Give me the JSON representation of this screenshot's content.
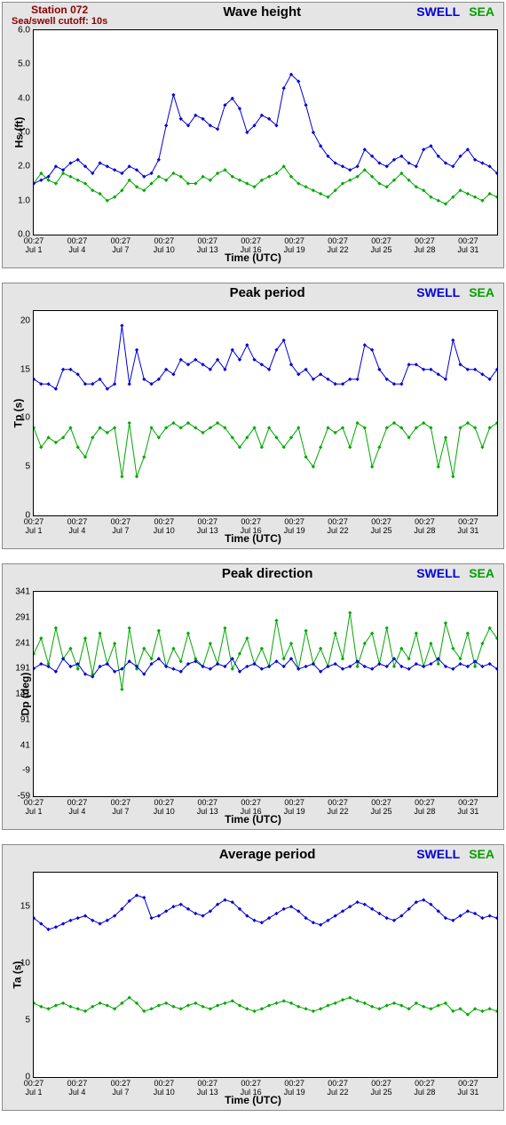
{
  "station": {
    "name": "Station 072",
    "cutoff": "Sea/swell cutoff: 10s"
  },
  "legend": {
    "swell": "SWELL",
    "sea": "SEA"
  },
  "colors": {
    "swell": "#0000d8",
    "sea": "#00a800",
    "station_text": "#8b0000",
    "panel_bg": "#e5e5e5",
    "plot_bg": "#ffffff",
    "border": "#8a8a8a",
    "ink": "#000000"
  },
  "time": {
    "label": "Time (UTC)",
    "ticks": [
      {
        "t": "00:27",
        "d": "Jul 1",
        "x": 0
      },
      {
        "t": "00:27",
        "d": "Jul 4",
        "x": 3
      },
      {
        "t": "00:27",
        "d": "Jul 7",
        "x": 6
      },
      {
        "t": "00:27",
        "d": "Jul 10",
        "x": 9
      },
      {
        "t": "00:27",
        "d": "Jul 13",
        "x": 12
      },
      {
        "t": "00:27",
        "d": "Jul 16",
        "x": 15
      },
      {
        "t": "00:27",
        "d": "Jul 19",
        "x": 18
      },
      {
        "t": "00:27",
        "d": "Jul 22",
        "x": 21
      },
      {
        "t": "00:27",
        "d": "Jul 25",
        "x": 24
      },
      {
        "t": "00:27",
        "d": "Jul 28",
        "x": 27
      },
      {
        "t": "00:27",
        "d": "Jul 31",
        "x": 30
      }
    ],
    "xmin": 0,
    "xmax": 32
  },
  "panels": [
    {
      "id": "wave-height",
      "title": "Wave height",
      "ylabel": "Hs (ft)",
      "ymin": 0,
      "ymax": 6,
      "yticks": [
        0,
        "0.0",
        1,
        "1.0",
        2,
        "2.0",
        3,
        "3.0",
        4,
        "4.0",
        5,
        "5.0",
        6,
        "6.0"
      ],
      "swell": [
        1.5,
        1.6,
        1.7,
        2.0,
        1.9,
        2.1,
        2.2,
        2.0,
        1.8,
        2.1,
        2.0,
        1.9,
        1.8,
        2.0,
        1.9,
        1.7,
        1.8,
        2.2,
        3.2,
        4.1,
        3.4,
        3.2,
        3.5,
        3.4,
        3.2,
        3.1,
        3.8,
        4.0,
        3.7,
        3.0,
        3.2,
        3.5,
        3.4,
        3.2,
        4.3,
        4.7,
        4.5,
        3.8,
        3.0,
        2.6,
        2.3,
        2.1,
        2.0,
        1.9,
        2.0,
        2.5,
        2.3,
        2.1,
        2.0,
        2.2,
        2.3,
        2.1,
        2.0,
        2.5,
        2.6,
        2.3,
        2.1,
        2.0,
        2.3,
        2.5,
        2.2,
        2.1,
        2.0,
        1.8
      ],
      "sea": [
        1.5,
        1.8,
        1.6,
        1.5,
        1.8,
        1.7,
        1.6,
        1.5,
        1.3,
        1.2,
        1.0,
        1.1,
        1.3,
        1.6,
        1.4,
        1.3,
        1.5,
        1.7,
        1.6,
        1.8,
        1.7,
        1.5,
        1.5,
        1.7,
        1.6,
        1.8,
        1.9,
        1.7,
        1.6,
        1.5,
        1.4,
        1.6,
        1.7,
        1.8,
        2.0,
        1.7,
        1.5,
        1.4,
        1.3,
        1.2,
        1.1,
        1.3,
        1.5,
        1.6,
        1.7,
        1.9,
        1.7,
        1.5,
        1.4,
        1.6,
        1.8,
        1.6,
        1.4,
        1.3,
        1.1,
        1.0,
        0.9,
        1.1,
        1.3,
        1.2,
        1.1,
        1.0,
        1.2,
        1.1
      ]
    },
    {
      "id": "peak-period",
      "title": "Peak period",
      "ylabel": "Tp (s)",
      "ymin": 0,
      "ymax": 21,
      "yticks": [
        0,
        "0",
        5,
        "5",
        10,
        "10",
        15,
        "15",
        20,
        "20"
      ],
      "swell": [
        14,
        13.5,
        13.5,
        13,
        15,
        15,
        14.5,
        13.5,
        13.5,
        14,
        13,
        13.5,
        19.5,
        13.5,
        17,
        14,
        13.5,
        14,
        15,
        14.5,
        16,
        15.5,
        16,
        15.5,
        15,
        16,
        15,
        17,
        16,
        17.5,
        16,
        15.5,
        15,
        17,
        18,
        15.5,
        14.5,
        15,
        14,
        14.5,
        14,
        13.5,
        13.5,
        14,
        14,
        17.5,
        17,
        15,
        14,
        13.5,
        13.5,
        15.5,
        15.5,
        15,
        15,
        14.5,
        14,
        18,
        15.5,
        15,
        15,
        14.5,
        14,
        15
      ],
      "sea": [
        9,
        7,
        8,
        7.5,
        8,
        9,
        7,
        6,
        8,
        9,
        8.5,
        9,
        4,
        9.5,
        4,
        6,
        9,
        8,
        9,
        9.5,
        9,
        9.5,
        9,
        8.5,
        9,
        9.5,
        9,
        8,
        7,
        8,
        9,
        7,
        9,
        8,
        7,
        8,
        9,
        6,
        5,
        7,
        9,
        8.5,
        9,
        7,
        9.5,
        9,
        5,
        7,
        9,
        9.5,
        9,
        8,
        9,
        9.5,
        9,
        5,
        8,
        4,
        9,
        9.5,
        9,
        7,
        9,
        9.5
      ]
    },
    {
      "id": "peak-direction",
      "title": "Peak direction",
      "ylabel": "Dp (deg)",
      "ymin": -59,
      "ymax": 341,
      "yticks": [
        -59,
        "-59",
        -9,
        "-9",
        41,
        "41",
        91,
        "91",
        141,
        "141",
        191,
        "191",
        241,
        "241",
        291,
        "291",
        341,
        "341"
      ],
      "swell": [
        191,
        200,
        195,
        185,
        210,
        195,
        200,
        180,
        175,
        195,
        200,
        185,
        190,
        205,
        195,
        180,
        200,
        210,
        195,
        190,
        185,
        200,
        205,
        195,
        190,
        200,
        195,
        210,
        185,
        195,
        200,
        190,
        195,
        205,
        195,
        210,
        190,
        195,
        200,
        185,
        195,
        200,
        190,
        195,
        205,
        195,
        190,
        200,
        195,
        210,
        195,
        190,
        200,
        195,
        200,
        210,
        195,
        190,
        200,
        195,
        205,
        195,
        200,
        190
      ],
      "sea": [
        220,
        250,
        200,
        270,
        210,
        230,
        190,
        250,
        180,
        260,
        200,
        240,
        150,
        270,
        190,
        230,
        210,
        265,
        195,
        230,
        205,
        260,
        210,
        195,
        240,
        200,
        270,
        190,
        220,
        250,
        200,
        230,
        195,
        285,
        210,
        240,
        190,
        265,
        200,
        230,
        195,
        260,
        210,
        300,
        195,
        240,
        260,
        200,
        270,
        195,
        230,
        210,
        260,
        195,
        240,
        200,
        280,
        230,
        210,
        260,
        195,
        240,
        270,
        250
      ]
    },
    {
      "id": "average-period",
      "title": "Average period",
      "ylabel": "Ta (s)",
      "ymin": 0,
      "ymax": 18,
      "yticks": [
        0,
        "0",
        5,
        "5",
        10,
        "10",
        15,
        "15"
      ],
      "swell": [
        14,
        13.5,
        13,
        13.2,
        13.5,
        13.8,
        14,
        14.2,
        13.8,
        13.5,
        13.8,
        14.2,
        14.8,
        15.5,
        16,
        15.8,
        14,
        14.2,
        14.6,
        15,
        15.2,
        14.8,
        14.4,
        14.2,
        14.6,
        15.2,
        15.6,
        15.4,
        14.8,
        14.2,
        13.8,
        13.6,
        14,
        14.4,
        14.8,
        15,
        14.6,
        14,
        13.6,
        13.4,
        13.8,
        14.2,
        14.6,
        15,
        15.4,
        15.2,
        14.8,
        14.4,
        14,
        13.8,
        14.2,
        14.8,
        15.4,
        15.6,
        15.2,
        14.6,
        14,
        13.8,
        14.2,
        14.6,
        14.4,
        14,
        14.2,
        14
      ],
      "sea": [
        6.5,
        6.2,
        6.0,
        6.3,
        6.5,
        6.2,
        6.0,
        5.8,
        6.2,
        6.5,
        6.3,
        6.0,
        6.5,
        7.0,
        6.5,
        5.8,
        6.0,
        6.3,
        6.5,
        6.2,
        6.0,
        6.3,
        6.5,
        6.2,
        6.0,
        6.3,
        6.5,
        6.7,
        6.3,
        6.0,
        5.8,
        6.0,
        6.3,
        6.5,
        6.7,
        6.5,
        6.2,
        6.0,
        5.8,
        6.0,
        6.3,
        6.5,
        6.8,
        7.0,
        6.7,
        6.5,
        6.2,
        6.0,
        6.3,
        6.5,
        6.3,
        6.0,
        6.5,
        6.2,
        6.0,
        6.3,
        6.5,
        5.8,
        6.0,
        5.5,
        6.0,
        5.8,
        6.0,
        5.8
      ]
    }
  ]
}
